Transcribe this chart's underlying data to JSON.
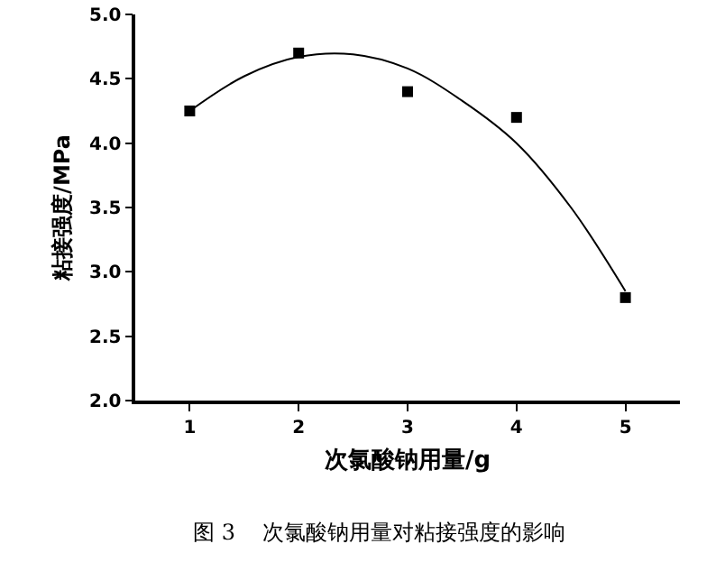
{
  "chart_data": {
    "type": "scatter",
    "xlabel": "次氯酸钠用量/g",
    "ylabel": "粘接强度/MPa",
    "annotations": [
      "图 3    次氯酸钠用量对粘接强度的影响"
    ],
    "x": [
      1,
      2,
      3,
      4,
      5
    ],
    "series": [
      {
        "type": "scatter",
        "color": "#000000",
        "marker": "square",
        "values": [
          4.25,
          4.7,
          4.4,
          4.2,
          2.8
        ]
      },
      {
        "type": "line",
        "color": "#000000",
        "x": [
          1,
          1.5,
          2,
          2.5,
          3,
          3.5,
          4,
          4.5,
          5
        ],
        "values": [
          4.25,
          4.52,
          4.67,
          4.69,
          4.58,
          4.33,
          4.0,
          3.5,
          2.85
        ]
      }
    ],
    "xlim": [
      0.5,
      5.5
    ],
    "xticks": [
      1,
      2,
      3,
      4,
      5
    ],
    "ylim": [
      2.0,
      5.0
    ],
    "yticks": [
      {
        "value": 2.0,
        "label": "2.0"
      },
      {
        "value": 2.5,
        "label": "2.5"
      },
      {
        "value": 3.0,
        "label": "3.0"
      },
      {
        "value": 3.5,
        "label": "3.5"
      },
      {
        "value": 4.0,
        "label": "4.0"
      },
      {
        "value": 4.5,
        "label": "4.5"
      },
      {
        "value": 5.0,
        "label": "5.0"
      }
    ],
    "grid": false,
    "legend": false
  }
}
